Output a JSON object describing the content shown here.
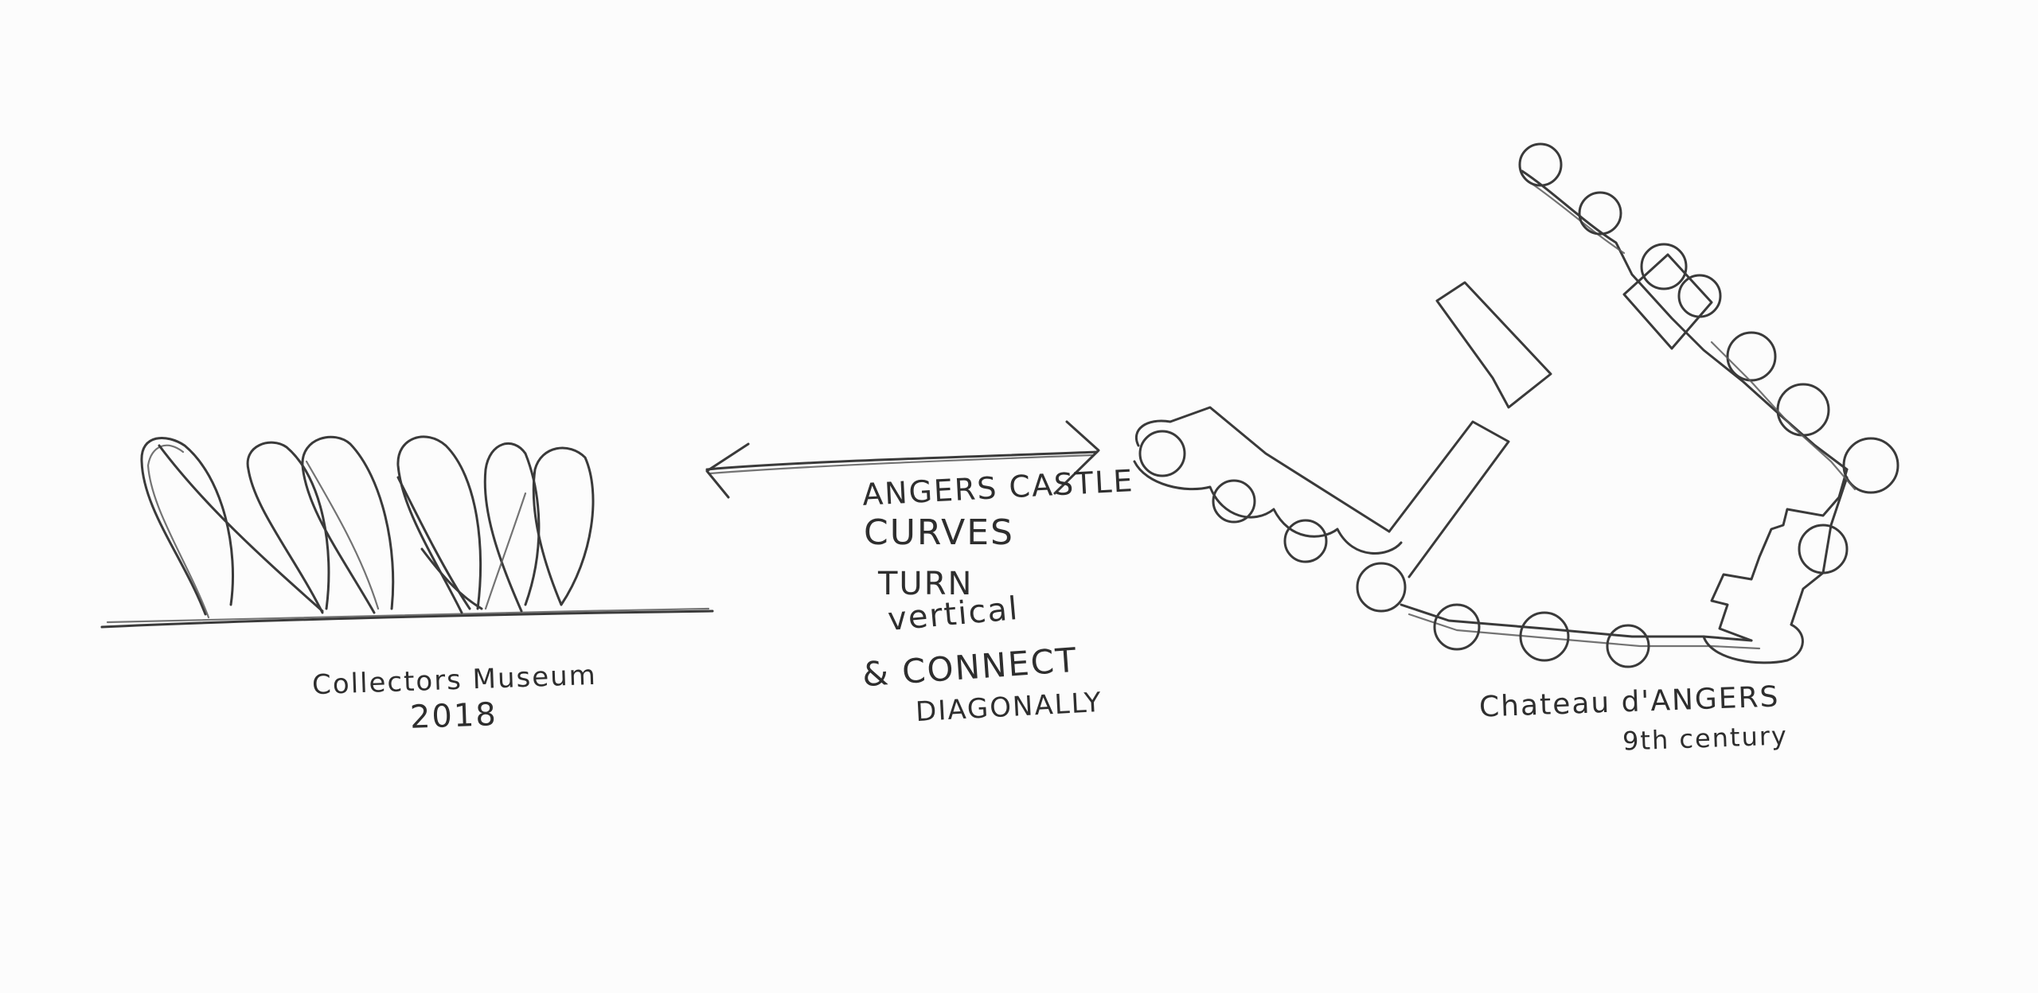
{
  "left_sketch": {
    "caption_line1": "Collectors Museum",
    "caption_line2": "2018"
  },
  "center_note": {
    "line1": "ANGERS CASTLE",
    "line2": "CURVES",
    "line3": "TURN",
    "line4": "vertical",
    "line5": "& CONNECT",
    "line6": "DIAGONALLY"
  },
  "right_sketch": {
    "caption_line1": "Chateau d'ANGERS",
    "caption_line2": "9th century"
  },
  "colors": {
    "paper": "#fcfcfc",
    "pencil": "#3a3a3a"
  }
}
